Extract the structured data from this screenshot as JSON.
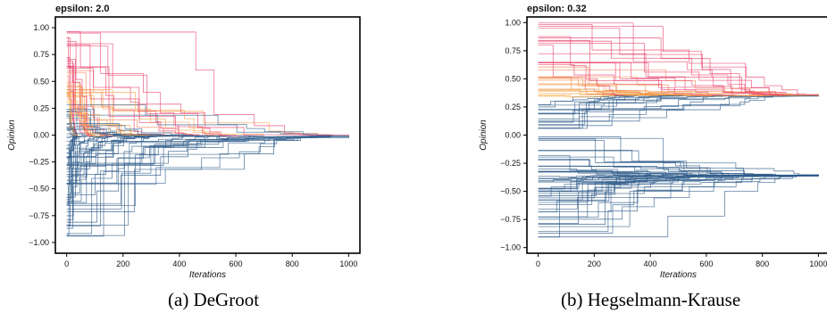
{
  "chart_data": [
    {
      "type": "line",
      "title": "epsilon: 2.0",
      "xlabel": "Iterations",
      "ylabel": "Opinion",
      "xlim": [
        -40,
        1040
      ],
      "ylim": [
        -1.1,
        1.1
      ],
      "x_ticks": [
        0,
        200,
        400,
        600,
        800,
        1000
      ],
      "y_ticks": [
        1.0,
        0.75,
        0.5,
        0.25,
        0.0,
        -0.25,
        -0.5,
        -0.75,
        -1.0
      ],
      "x_tick_labels": [
        "0",
        "200",
        "400",
        "600",
        "800",
        "1000"
      ],
      "y_tick_labels": [
        "1.00",
        "0.75",
        "0.50",
        "0.25",
        "0.00",
        "−0.25",
        "−0.50",
        "−0.75",
        "−1.00"
      ],
      "grid": false,
      "legend": "none",
      "colors": {
        "high": "#e8416e",
        "mid": "#f5b342",
        "low": "#2e5b8a"
      },
      "trajectories": {
        "consensus_value": -0.01,
        "max_iterations": 1000,
        "agent_count": 100,
        "initial_opinion_range": [
          -0.95,
          1.0
        ],
        "convergence": "single cluster near 0"
      },
      "caption": "(a) DeGroot"
    },
    {
      "type": "line",
      "title": "epsilon: 0.32",
      "xlabel": "Iterations",
      "ylabel": "Opinion",
      "xlim": [
        -40,
        1040
      ],
      "ylim": [
        -1.05,
        1.05
      ],
      "x_ticks": [
        0,
        200,
        400,
        600,
        800,
        1000
      ],
      "y_ticks": [
        1.0,
        0.75,
        0.5,
        0.25,
        0.0,
        -0.25,
        -0.5,
        -0.75,
        -1.0
      ],
      "x_tick_labels": [
        "0",
        "200",
        "400",
        "600",
        "800",
        "1000"
      ],
      "y_tick_labels": [
        "1.00",
        "0.75",
        "0.50",
        "0.25",
        "0.00",
        "−0.25",
        "−0.50",
        "−0.75",
        "−1.00"
      ],
      "grid": false,
      "legend": "none",
      "colors": {
        "high": "#e8416e",
        "mid": "#f5b342",
        "low": "#2e5b8a"
      },
      "trajectories": {
        "cluster_values": [
          0.35,
          -0.36
        ],
        "max_iterations": 1000,
        "agent_count": 100,
        "initial_opinion_range": [
          -0.95,
          1.0
        ],
        "convergence": "two clusters"
      },
      "caption": "(b) Hegselmann-Krause"
    }
  ]
}
